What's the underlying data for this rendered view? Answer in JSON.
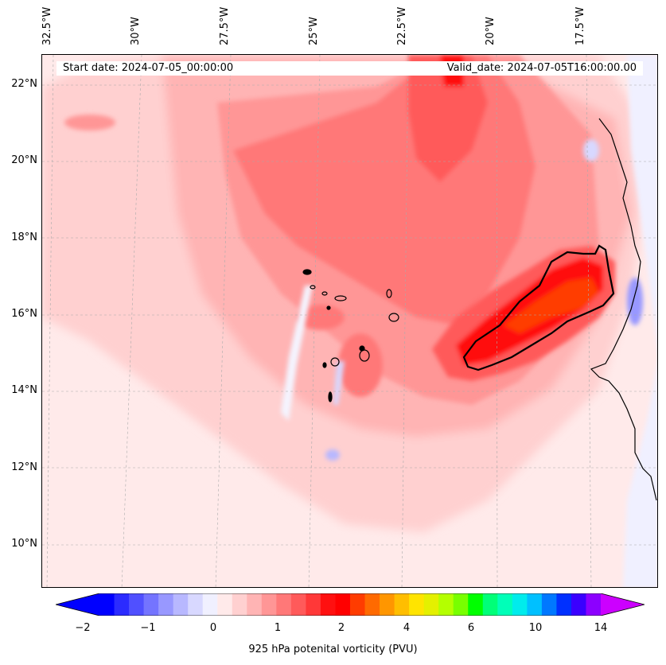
{
  "map": {
    "start_date": "Start date: 2024-07-05_00:00:00",
    "valid_date": "Valid_date: 2024-07-05T16:00:00.00",
    "lon_labels": [
      "32.5°W",
      "30°W",
      "27.5°W",
      "25°W",
      "22.5°W",
      "20°W",
      "17.5°W"
    ],
    "lat_labels": [
      "22°N",
      "20°N",
      "18°N",
      "16°N",
      "14°N",
      "12°N",
      "10°N"
    ],
    "lon_range": [
      -33.3,
      -15.8
    ],
    "lat_range": [
      8.9,
      22.8
    ],
    "grid": true
  },
  "colorbar": {
    "label": "925 hPa potenital vorticity (PVU)",
    "tick_labels": [
      "−2",
      "−1",
      "0",
      "1",
      "2",
      "4",
      "6",
      "10",
      "14"
    ],
    "colors": [
      "#0000ff",
      "#2b2bff",
      "#5050ff",
      "#7474ff",
      "#9898ff",
      "#b8b8ff",
      "#d8d8ff",
      "#f0f0ff",
      "#ffeaea",
      "#ffd0d0",
      "#ffb4b4",
      "#ff9696",
      "#ff7878",
      "#ff5a5a",
      "#ff3838",
      "#ff1010",
      "#ff0000",
      "#ff3c00",
      "#ff6a00",
      "#ff9600",
      "#ffbe00",
      "#ffe400",
      "#e4f000",
      "#b4ff00",
      "#78ff00",
      "#00ff00",
      "#00ff78",
      "#00ffb8",
      "#00ecec",
      "#00c0ff",
      "#0078ff",
      "#0030ff",
      "#3a00ff",
      "#8c00ff"
    ],
    "extend_min_color": "#0000ff",
    "extend_max_color": "#cc00ff"
  }
}
